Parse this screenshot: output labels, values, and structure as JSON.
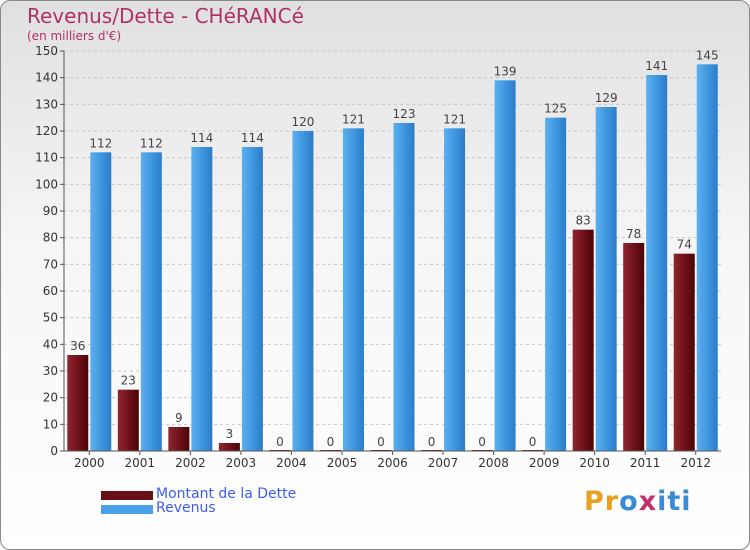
{
  "chart_data": {
    "type": "bar",
    "title": "Revenus/Dette - CHéRANCé",
    "subtitle": "(en milliers d'€)",
    "categories": [
      "2000",
      "2001",
      "2002",
      "2003",
      "2004",
      "2005",
      "2006",
      "2007",
      "2008",
      "2009",
      "2010",
      "2011",
      "2012"
    ],
    "series": [
      {
        "name": "Montant de la Dette",
        "color": "#7a1a22",
        "values": [
          36,
          23,
          9,
          3,
          0,
          0,
          0,
          0,
          0,
          0,
          83,
          78,
          74
        ]
      },
      {
        "name": "Revenus",
        "color": "#4aa0e6",
        "values": [
          112,
          112,
          114,
          114,
          120,
          121,
          123,
          121,
          139,
          125,
          129,
          141,
          145
        ]
      }
    ],
    "ylim": [
      0,
      150
    ],
    "yticks": [
      0,
      10,
      20,
      30,
      40,
      50,
      60,
      70,
      80,
      90,
      100,
      110,
      120,
      130,
      140,
      150
    ],
    "grid": true,
    "xlabel": "",
    "ylabel": "",
    "legend": "bottom-left"
  },
  "logo": {
    "text": "Proxiti",
    "letters": [
      "P",
      "r",
      "o",
      "x",
      "i",
      "t",
      "i"
    ],
    "colors": [
      "#e8a020",
      "#e8a020",
      "#3a8ad8",
      "#c03070",
      "#3a8ad8",
      "#3a8ad8",
      "#3a8ad8"
    ]
  }
}
